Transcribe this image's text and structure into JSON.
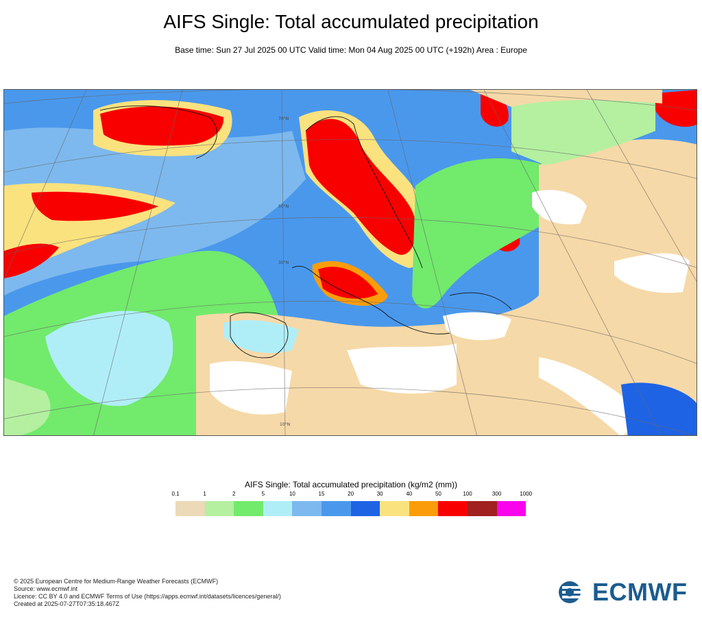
{
  "header": {
    "title": "AIFS Single: Total accumulated precipitation",
    "subtitle": "Base time: Sun 27 Jul 2025 00 UTC Valid time: Mon 04 Aug 2025 00 UTC (+192h) Area : Europe"
  },
  "map": {
    "graticule_labels": [
      "70°N",
      "50°N",
      "30°N",
      "10°N"
    ],
    "palette": {
      "p0_1": "#ecd9b8",
      "p1": "#b4f0a0",
      "p2": "#72ea6c",
      "p5": "#b0eef7",
      "p10": "#7db9ee",
      "p15": "#4a98ec",
      "p20": "#1e63e4",
      "p30": "#fae27e",
      "p40": "#fb9d0a",
      "p50": "#f80000",
      "p100": "#a0211f",
      "p300": "#f904ec",
      "land_dry": "#f6d9a8",
      "no_precip": "#ffffff"
    }
  },
  "legend": {
    "title": "AIFS Single: Total accumulated precipitation (kg/m2 (mm))",
    "ticks": [
      "0.1",
      "1",
      "2",
      "5",
      "10",
      "15",
      "20",
      "30",
      "40",
      "50",
      "100",
      "300",
      "1000"
    ],
    "colors": [
      "#ecd9b8",
      "#b4f0a0",
      "#72ea6c",
      "#b0eef7",
      "#7db9ee",
      "#4a98ec",
      "#1e63e4",
      "#fae27e",
      "#fb9d0a",
      "#f80000",
      "#a0211f",
      "#f904ec"
    ]
  },
  "footer": {
    "copyright": "© 2025 European Centre for Medium-Range Weather Forecasts (ECMWF)",
    "source": "Source: www.ecmwf.int",
    "licence": "Licence: CC BY 4.0 and ECMWF Terms of Use (https://apps.ecmwf.int/datasets/licences/general/)",
    "created": "Created at 2025-07-27T07:35:18.467Z"
  },
  "logo": {
    "text": "ECMWF"
  }
}
